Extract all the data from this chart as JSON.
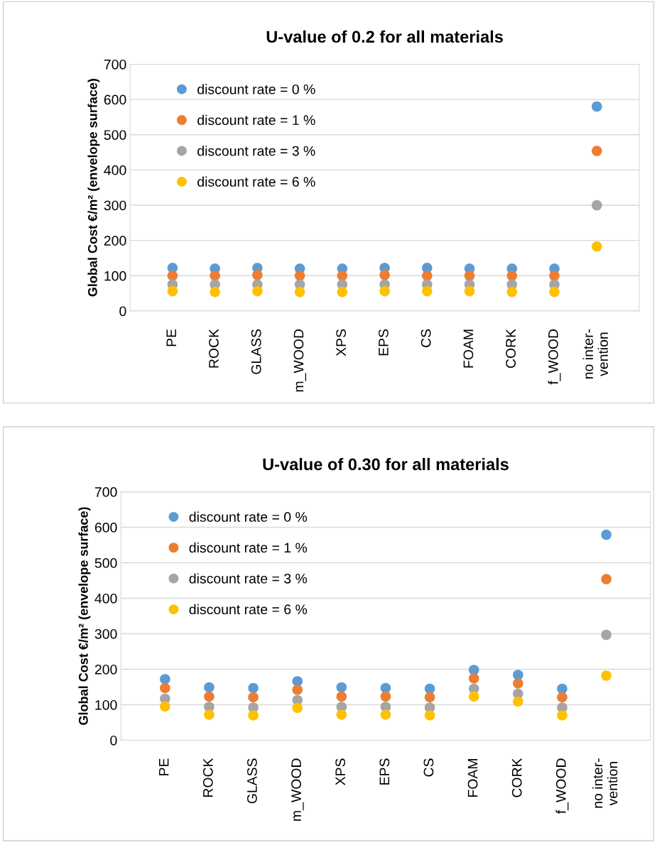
{
  "chart_data": [
    {
      "type": "scatter",
      "title": "U-value of 0.2 for all materials",
      "ylabel": "Global Cost €/m² (envelope surface)",
      "categories": [
        "PE",
        "ROCK",
        "GLASS",
        "m_WOOD",
        "XPS",
        "EPS",
        "CS",
        "FOAM",
        "CORK",
        "f_WOOD",
        "no inter-\nvention"
      ],
      "series": [
        {
          "name": "discount rate = 0 %",
          "color": "#5b9bd5",
          "values": [
            122,
            120,
            122,
            120,
            120,
            122,
            122,
            120,
            120,
            120,
            580
          ]
        },
        {
          "name": "discount rate = 1 %",
          "color": "#ed7d31",
          "values": [
            100,
            100,
            102,
            100,
            100,
            102,
            100,
            100,
            100,
            100,
            454
          ]
        },
        {
          "name": "discount rate = 3 %",
          "color": "#a5a5a5",
          "values": [
            75,
            75,
            75,
            75,
            75,
            75,
            75,
            75,
            75,
            75,
            300
          ]
        },
        {
          "name": "discount rate = 6 %",
          "color": "#ffc000",
          "values": [
            56,
            54,
            56,
            54,
            54,
            56,
            56,
            56,
            54,
            54,
            183
          ]
        }
      ],
      "ylim": [
        0,
        700
      ],
      "yticks": [
        0,
        100,
        200,
        300,
        400,
        500,
        600,
        700
      ],
      "grid": true,
      "legend": "top left",
      "marker": "circle"
    },
    {
      "type": "scatter",
      "title": "U-value of 0.30 for all materials",
      "ylabel": "Global Cost €/m² (envelope surface)",
      "categories": [
        "PE",
        "ROCK",
        "GLASS",
        "m_WOOD",
        "XPS",
        "EPS",
        "CS",
        "FOAM",
        "CORK",
        "f_WOOD",
        "no inter-\nvention"
      ],
      "series": [
        {
          "name": "discount rate = 0 %",
          "color": "#5b9bd5",
          "values": [
            172,
            149,
            147,
            166,
            149,
            147,
            145,
            198,
            184,
            145,
            579
          ]
        },
        {
          "name": "discount rate = 1 %",
          "color": "#ed7d31",
          "values": [
            147,
            123,
            121,
            142,
            123,
            123,
            121,
            174,
            160,
            121,
            454
          ]
        },
        {
          "name": "discount rate = 3 %",
          "color": "#a5a5a5",
          "values": [
            117,
            94,
            92,
            113,
            94,
            94,
            92,
            145,
            131,
            92,
            297
          ]
        },
        {
          "name": "discount rate = 6 %",
          "color": "#ffc000",
          "values": [
            95,
            72,
            70,
            91,
            72,
            72,
            70,
            123,
            109,
            70,
            182
          ]
        }
      ],
      "ylim": [
        0,
        700
      ],
      "yticks": [
        0,
        100,
        200,
        300,
        400,
        500,
        600,
        700
      ],
      "grid": true,
      "legend": "top left",
      "marker": "circle"
    }
  ]
}
